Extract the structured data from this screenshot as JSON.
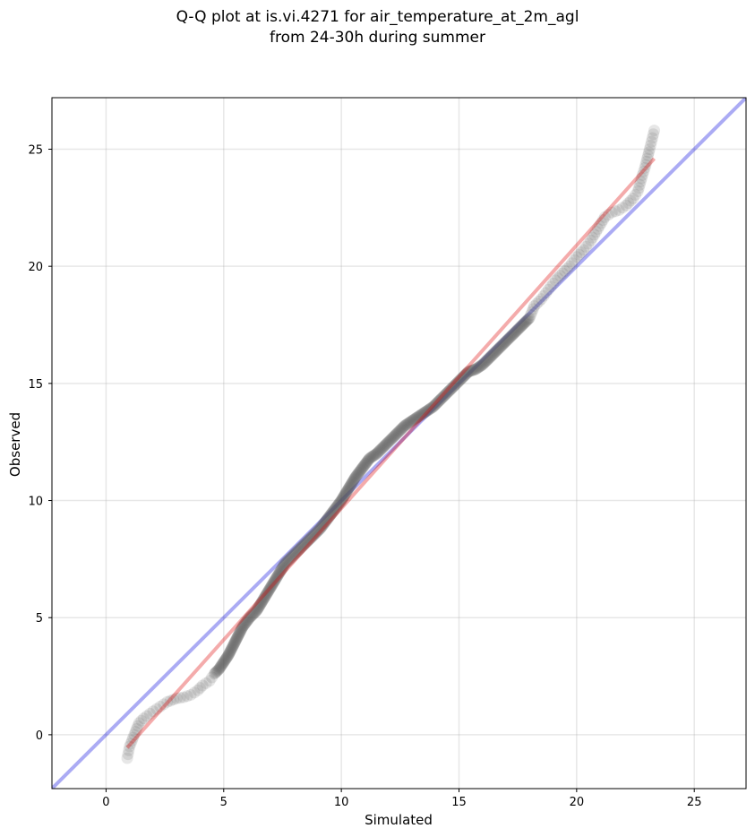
{
  "chart_data": {
    "type": "scatter",
    "title": "Q-Q plot at is.vi.4271 for air_temperature_at_2m_agl",
    "subtitle": "from 24-30h during summer",
    "xlabel": "Simulated",
    "ylabel": "Observed",
    "xlim": [
      -2.3,
      27.2
    ],
    "ylim": [
      -2.3,
      27.2
    ],
    "xticks": [
      0,
      5,
      10,
      15,
      20,
      25
    ],
    "yticks": [
      0,
      5,
      10,
      15,
      20,
      25
    ],
    "grid": true,
    "reference_line": {
      "description": "1:1 line",
      "color": "#0000dd",
      "from": [
        -2.3,
        -2.3
      ],
      "to": [
        27.2,
        27.2
      ]
    },
    "fit_line": {
      "description": "regression fit",
      "color": "#dd0000",
      "from": [
        0.9,
        -0.55
      ],
      "to": [
        23.3,
        24.6
      ]
    },
    "points_color": "#555555",
    "points": [
      [
        0.9,
        -1.0
      ],
      [
        1.0,
        -0.5
      ],
      [
        1.2,
        0.0
      ],
      [
        1.4,
        0.5
      ],
      [
        1.6,
        0.7
      ],
      [
        2.0,
        1.0
      ],
      [
        2.3,
        1.2
      ],
      [
        2.6,
        1.4
      ],
      [
        3.0,
        1.55
      ],
      [
        3.3,
        1.6
      ],
      [
        3.6,
        1.7
      ],
      [
        3.9,
        1.9
      ],
      [
        4.1,
        2.1
      ],
      [
        4.4,
        2.3
      ],
      [
        4.6,
        2.6
      ],
      [
        4.8,
        2.8
      ],
      [
        5.0,
        3.1
      ],
      [
        5.2,
        3.4
      ],
      [
        5.4,
        3.8
      ],
      [
        5.6,
        4.2
      ],
      [
        5.8,
        4.6
      ],
      [
        6.1,
        5.0
      ],
      [
        6.4,
        5.3
      ],
      [
        6.7,
        5.8
      ],
      [
        7.0,
        6.3
      ],
      [
        7.3,
        6.8
      ],
      [
        7.6,
        7.3
      ],
      [
        7.9,
        7.6
      ],
      [
        8.2,
        7.9
      ],
      [
        8.5,
        8.2
      ],
      [
        8.8,
        8.5
      ],
      [
        9.1,
        8.8
      ],
      [
        9.4,
        9.2
      ],
      [
        9.7,
        9.6
      ],
      [
        10.0,
        10.0
      ],
      [
        10.3,
        10.5
      ],
      [
        10.6,
        11.0
      ],
      [
        10.9,
        11.4
      ],
      [
        11.2,
        11.8
      ],
      [
        11.5,
        12.0
      ],
      [
        11.8,
        12.3
      ],
      [
        12.1,
        12.6
      ],
      [
        12.4,
        12.9
      ],
      [
        12.7,
        13.2
      ],
      [
        13.0,
        13.4
      ],
      [
        13.3,
        13.6
      ],
      [
        13.6,
        13.8
      ],
      [
        13.9,
        14.0
      ],
      [
        14.2,
        14.3
      ],
      [
        14.5,
        14.6
      ],
      [
        14.8,
        14.9
      ],
      [
        15.1,
        15.2
      ],
      [
        15.4,
        15.5
      ],
      [
        15.7,
        15.6
      ],
      [
        16.0,
        15.8
      ],
      [
        16.3,
        16.1
      ],
      [
        16.6,
        16.4
      ],
      [
        16.9,
        16.7
      ],
      [
        17.2,
        17.0
      ],
      [
        17.5,
        17.3
      ],
      [
        17.8,
        17.6
      ],
      [
        18.0,
        17.8
      ],
      [
        18.2,
        18.3
      ],
      [
        18.5,
        18.6
      ],
      [
        18.8,
        19.0
      ],
      [
        19.1,
        19.4
      ],
      [
        19.4,
        19.7
      ],
      [
        19.7,
        20.0
      ],
      [
        20.0,
        20.4
      ],
      [
        20.3,
        20.7
      ],
      [
        20.6,
        21.1
      ],
      [
        20.9,
        21.6
      ],
      [
        21.2,
        22.1
      ],
      [
        21.5,
        22.3
      ],
      [
        21.8,
        22.4
      ],
      [
        22.1,
        22.6
      ],
      [
        22.4,
        22.9
      ],
      [
        22.6,
        23.2
      ],
      [
        22.8,
        23.9
      ],
      [
        22.9,
        24.2
      ],
      [
        23.0,
        24.6
      ],
      [
        23.1,
        25.0
      ],
      [
        23.3,
        25.8
      ]
    ]
  }
}
